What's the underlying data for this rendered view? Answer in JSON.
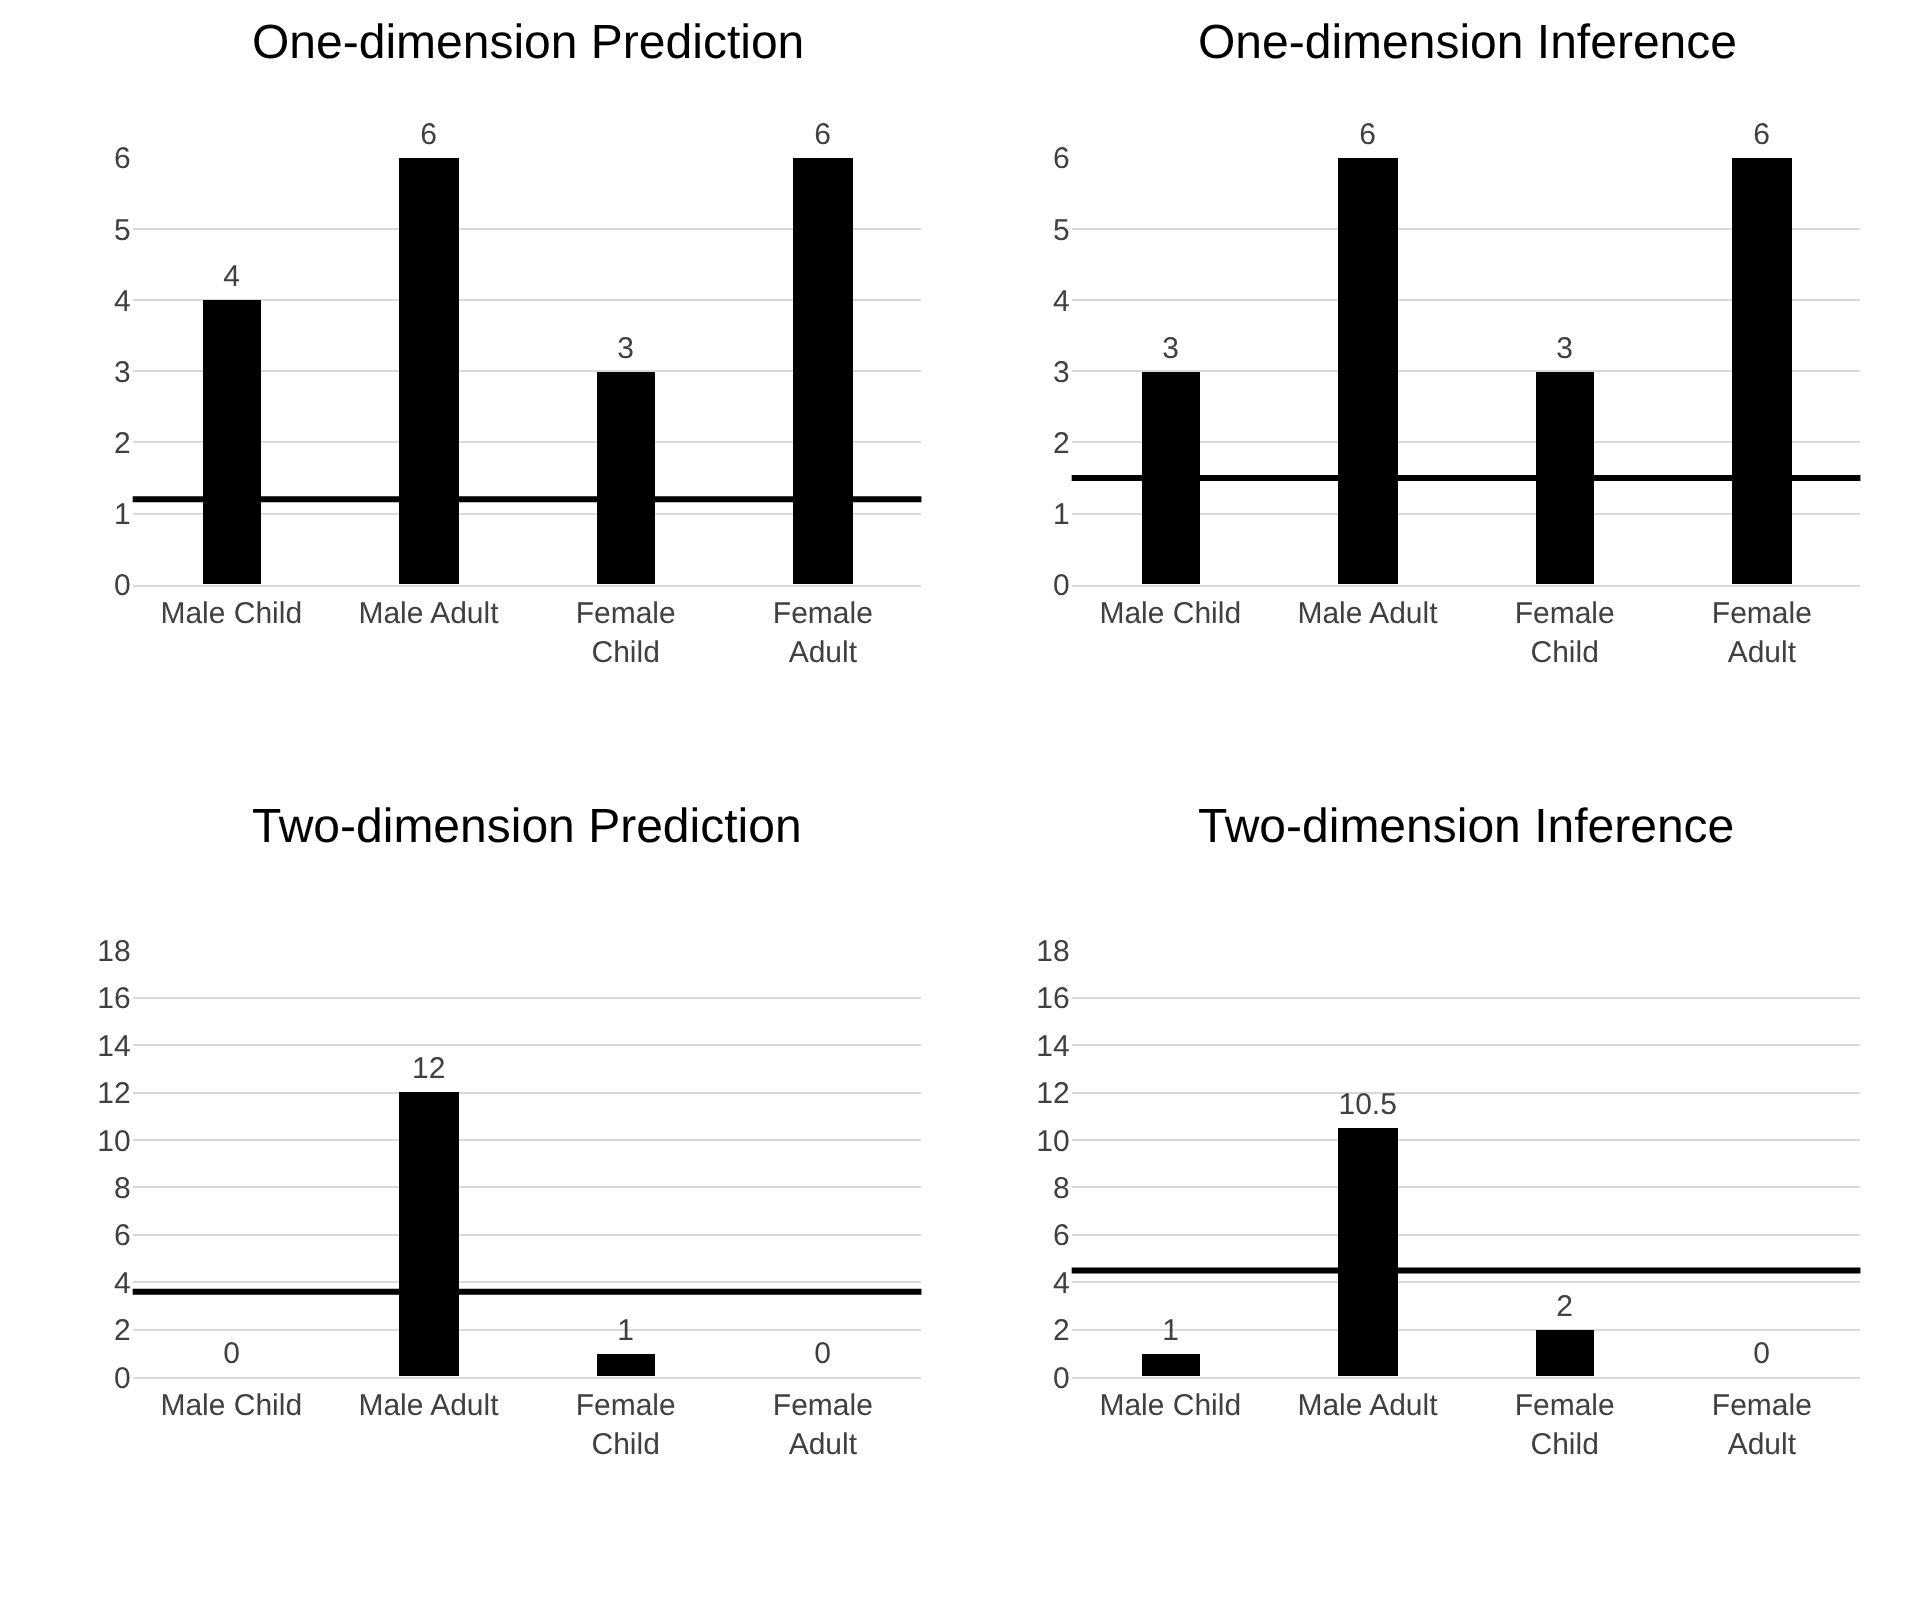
{
  "chart_data": [
    {
      "type": "bar",
      "title": "One-dimension Prediction",
      "categories": [
        "Male Child",
        "Male Adult",
        "Female Child",
        "Female Adult"
      ],
      "values": [
        4,
        6,
        3,
        6
      ],
      "color": "#000000",
      "ylim": [
        0,
        6
      ],
      "yticks": [
        0,
        1,
        2,
        3,
        4,
        5,
        6
      ],
      "grid": "y",
      "data_labels": true,
      "ref_lines": [
        {
          "axis": "y",
          "value": 1.2,
          "color": "#000000",
          "line_style": "solid"
        }
      ]
    },
    {
      "type": "bar",
      "title": "One-dimension Inference",
      "categories": [
        "Male Child",
        "Male Adult",
        "Female Child",
        "Female Adult"
      ],
      "values": [
        3,
        6,
        3,
        6
      ],
      "color": "#000000",
      "ylim": [
        0,
        6
      ],
      "yticks": [
        0,
        1,
        2,
        3,
        4,
        5,
        6
      ],
      "grid": "y",
      "data_labels": true,
      "ref_lines": [
        {
          "axis": "y",
          "value": 1.5,
          "color": "#000000",
          "line_style": "solid"
        }
      ]
    },
    {
      "type": "bar",
      "title": "Two-dimension Prediction",
      "categories": [
        "Male Child",
        "Male Adult",
        "Female Child",
        "Female Adult"
      ],
      "values": [
        0,
        12,
        1,
        0
      ],
      "color": "#000000",
      "ylim": [
        0,
        18
      ],
      "yticks": [
        0,
        2,
        4,
        6,
        8,
        10,
        12,
        14,
        16,
        18
      ],
      "grid": "y",
      "data_labels": true,
      "ref_lines": [
        {
          "axis": "y",
          "value": 3.6,
          "color": "#000000",
          "line_style": "solid"
        }
      ]
    },
    {
      "type": "bar",
      "title": "Two-dimension Inference",
      "categories": [
        "Male Child",
        "Male Adult",
        "Female Child",
        "Female Adult"
      ],
      "values": [
        1,
        10.5,
        2,
        0
      ],
      "color": "#000000",
      "ylim": [
        0,
        18
      ],
      "yticks": [
        0,
        2,
        4,
        6,
        8,
        10,
        12,
        14,
        16,
        18
      ],
      "grid": "y",
      "data_labels": true,
      "ref_lines": [
        {
          "axis": "y",
          "value": 4.5,
          "color": "#000000",
          "line_style": "solid"
        }
      ]
    }
  ]
}
